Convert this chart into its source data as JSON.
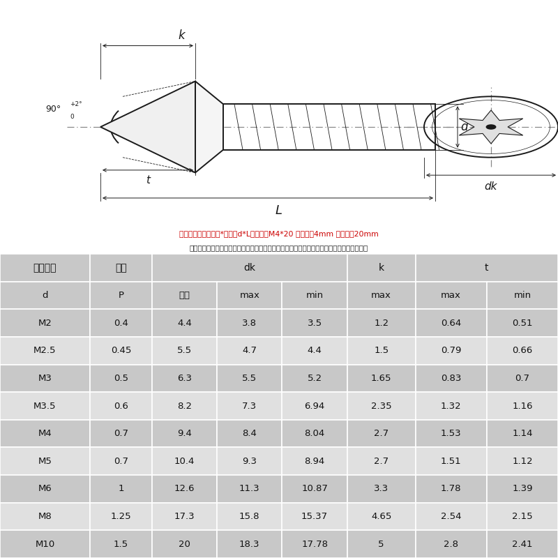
{
  "title_note1": "规格组成：螺纹直径*长度（d*L）例如：M4*20 螺纹直径4mm 螺纹长度20mm",
  "title_note2": "注：以下数据均为单批手工测量结果存在正负公差，具体数据请以实物为准，介意者慎拍！！",
  "header_row1": [
    "螺纹规格",
    "螺距",
    "dk",
    "",
    "",
    "k",
    "t",
    ""
  ],
  "header_row2": [
    "d",
    "P",
    "公称",
    "max",
    "min",
    "max",
    "max",
    "min"
  ],
  "data_rows": [
    [
      "M2",
      "0.4",
      "4.4",
      "3.8",
      "3.5",
      "1.2",
      "0.64",
      "0.51"
    ],
    [
      "M2.5",
      "0.45",
      "5.5",
      "4.7",
      "4.4",
      "1.5",
      "0.79",
      "0.66"
    ],
    [
      "M3",
      "0.5",
      "6.3",
      "5.5",
      "5.2",
      "1.65",
      "0.83",
      "0.7"
    ],
    [
      "M3.5",
      "0.6",
      "8.2",
      "7.3",
      "6.94",
      "2.35",
      "1.32",
      "1.16"
    ],
    [
      "M4",
      "0.7",
      "9.4",
      "8.4",
      "8.04",
      "2.7",
      "1.53",
      "1.14"
    ],
    [
      "M5",
      "0.7",
      "10.4",
      "9.3",
      "8.94",
      "2.7",
      "1.51",
      "1.12"
    ],
    [
      "M6",
      "1",
      "12.6",
      "11.3",
      "10.87",
      "3.3",
      "1.78",
      "1.39"
    ],
    [
      "M8",
      "1.25",
      "17.3",
      "15.8",
      "15.37",
      "4.65",
      "2.54",
      "2.15"
    ],
    [
      "M10",
      "1.5",
      "20",
      "18.3",
      "17.78",
      "5",
      "2.8",
      "2.41"
    ]
  ],
  "note_color": "#cc0000",
  "text_color": "#222222",
  "bg_header": "#c8c8c8",
  "bg_row_odd": "#c8c8c8",
  "bg_row_even": "#e0e0e0",
  "bg_draw": "#ffffff",
  "drawing_line_color": "#1a1a1a",
  "center_line_color": "#888888"
}
